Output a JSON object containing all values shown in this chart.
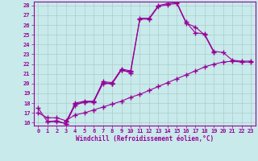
{
  "xlabel": "Windchill (Refroidissement éolien,°C)",
  "bg_color": "#c8eaea",
  "line_color": "#990099",
  "grid_color": "#aacccc",
  "xlim": [
    -0.5,
    23.5
  ],
  "ylim": [
    15.7,
    28.4
  ],
  "yticks": [
    16,
    17,
    18,
    19,
    20,
    21,
    22,
    23,
    24,
    25,
    26,
    27,
    28
  ],
  "xticks": [
    0,
    1,
    2,
    3,
    4,
    5,
    6,
    7,
    8,
    9,
    10,
    11,
    12,
    13,
    14,
    15,
    16,
    17,
    18,
    19,
    20,
    21,
    22,
    23
  ],
  "lines": [
    {
      "x": [
        0,
        1,
        2,
        3,
        4,
        5,
        6,
        7,
        8,
        9,
        10
      ],
      "y": [
        17.5,
        16.1,
        16.1,
        15.9,
        18.0,
        18.2,
        18.2,
        20.1,
        20.0,
        21.4,
        21.2
      ]
    },
    {
      "x": [
        1,
        2,
        3,
        4,
        5,
        6,
        7,
        8,
        9,
        10,
        11,
        12,
        13,
        14,
        15,
        16,
        17,
        18,
        19
      ],
      "y": [
        16.1,
        16.2,
        15.9,
        17.8,
        18.1,
        18.1,
        20.0,
        20.0,
        21.4,
        21.1,
        26.6,
        26.6,
        27.9,
        28.1,
        28.2,
        26.2,
        25.8,
        25.0,
        23.2
      ]
    },
    {
      "x": [
        3,
        4,
        5,
        6,
        7,
        8,
        9,
        10,
        11,
        12,
        13,
        14,
        15,
        16,
        17,
        18,
        19,
        20,
        21,
        22,
        23
      ],
      "y": [
        16.1,
        17.9,
        18.1,
        18.2,
        20.2,
        20.1,
        21.5,
        21.3,
        26.7,
        26.7,
        28.0,
        28.2,
        28.3,
        26.3,
        25.2,
        25.1,
        23.3,
        23.2,
        22.4,
        22.3,
        22.3
      ]
    },
    {
      "x": [
        0,
        1,
        2,
        3,
        4,
        5,
        6,
        7,
        8,
        9,
        10,
        11,
        12,
        13,
        14,
        15,
        16,
        17,
        18,
        19,
        20,
        21,
        22,
        23
      ],
      "y": [
        17.0,
        16.5,
        16.5,
        16.2,
        16.8,
        17.0,
        17.3,
        17.6,
        17.9,
        18.2,
        18.6,
        18.9,
        19.3,
        19.7,
        20.1,
        20.5,
        20.9,
        21.3,
        21.7,
        22.0,
        22.2,
        22.3,
        22.2,
        22.2
      ]
    }
  ]
}
